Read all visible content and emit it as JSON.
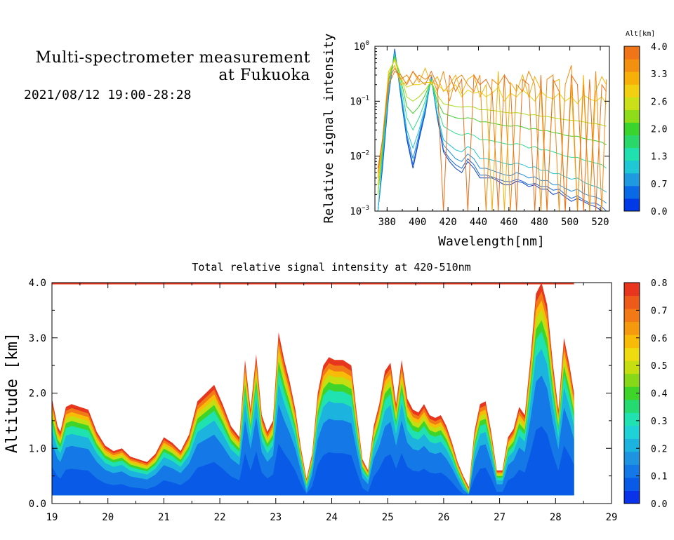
{
  "header": {
    "title_line1": "Multi-spectrometer measurement",
    "title_line2": "at Fukuoka",
    "date_range": "2021/08/12 19:00-28:28"
  },
  "chart_data": [
    {
      "type": "line",
      "title": "",
      "xlabel": "Wavelength[nm]",
      "ylabel": "Relative signal intensity",
      "xlim": [
        372,
        526
      ],
      "ylim": [
        0.001,
        1
      ],
      "yscale": "log",
      "x_ticks": [
        "380",
        "400",
        "420",
        "440",
        "460",
        "480",
        "500",
        "520"
      ],
      "y_ticks": [
        {
          "base": "10",
          "exp": "0"
        },
        {
          "base": "10",
          "exp": "−1"
        },
        {
          "base": "10",
          "exp": "−2"
        },
        {
          "base": "10",
          "exp": "−3"
        }
      ],
      "colorbar": {
        "label": "Alt[km]",
        "range": [
          0,
          4.0
        ],
        "tick_labels": [
          "4.0",
          "3.3",
          "2.6",
          "2.0",
          "1.3",
          "0.7",
          "0.0"
        ],
        "colors": [
          "#0039e6",
          "#0a6ae6",
          "#1f9ae0",
          "#1fc8d4",
          "#20e0b0",
          "#2ad86a",
          "#3bd42e",
          "#8edc1a",
          "#cce01a",
          "#f0d010",
          "#f7b008",
          "#f49010",
          "#f07418"
        ]
      },
      "x": [
        374,
        377,
        381,
        385,
        389,
        393,
        397,
        401,
        405,
        409,
        413,
        417,
        421,
        425,
        429,
        433,
        437,
        441,
        445,
        449,
        453,
        457,
        461,
        465,
        469,
        473,
        477,
        481,
        485,
        489,
        493,
        497,
        501,
        505,
        509,
        513,
        517,
        521,
        524
      ],
      "series": [
        {
          "alt": 0.0,
          "color": "#0a3fd0",
          "values": [
            0.001,
            0.006,
            0.12,
            0.9,
            0.12,
            0.02,
            0.006,
            0.02,
            0.06,
            0.28,
            0.05,
            0.012,
            0.008,
            0.006,
            0.005,
            0.008,
            0.006,
            0.004,
            0.004,
            0.004,
            0.0035,
            0.003,
            0.003,
            0.0035,
            0.0033,
            0.0028,
            0.003,
            0.0025,
            0.0025,
            0.002,
            0.0022,
            0.0018,
            0.0015,
            0.0017,
            0.0015,
            0.0013,
            0.0012,
            0.001,
            0.0009
          ]
        },
        {
          "alt": 0.4,
          "color": "#1466dc",
          "values": [
            0.001,
            0.007,
            0.13,
            0.85,
            0.13,
            0.022,
            0.007,
            0.022,
            0.065,
            0.27,
            0.05,
            0.013,
            0.009,
            0.007,
            0.006,
            0.009,
            0.007,
            0.0045,
            0.0045,
            0.0042,
            0.0038,
            0.0035,
            0.0034,
            0.0038,
            0.0035,
            0.003,
            0.0032,
            0.0028,
            0.0028,
            0.0024,
            0.0025,
            0.002,
            0.0017,
            0.0019,
            0.0016,
            0.0014,
            0.0014,
            0.0012,
            0.001
          ]
        },
        {
          "alt": 0.8,
          "color": "#1f8ee0",
          "values": [
            0.001,
            0.008,
            0.14,
            0.8,
            0.14,
            0.025,
            0.009,
            0.025,
            0.07,
            0.27,
            0.055,
            0.016,
            0.012,
            0.009,
            0.008,
            0.011,
            0.009,
            0.006,
            0.006,
            0.0055,
            0.005,
            0.0046,
            0.0044,
            0.005,
            0.0046,
            0.004,
            0.0042,
            0.0036,
            0.0036,
            0.003,
            0.003,
            0.0026,
            0.0023,
            0.0025,
            0.0021,
            0.0019,
            0.0018,
            0.0016,
            0.0014
          ]
        },
        {
          "alt": 1.2,
          "color": "#22c4d6",
          "values": [
            0.001,
            0.01,
            0.16,
            0.75,
            0.16,
            0.03,
            0.014,
            0.03,
            0.08,
            0.26,
            0.06,
            0.02,
            0.016,
            0.013,
            0.012,
            0.015,
            0.013,
            0.009,
            0.009,
            0.0085,
            0.008,
            0.0074,
            0.007,
            0.0075,
            0.007,
            0.0062,
            0.0064,
            0.0055,
            0.0055,
            0.0048,
            0.0048,
            0.0042,
            0.0038,
            0.004,
            0.0034,
            0.003,
            0.0028,
            0.0025,
            0.0022
          ]
        },
        {
          "alt": 1.6,
          "color": "#2edc8e",
          "values": [
            0.002,
            0.012,
            0.2,
            0.7,
            0.2,
            0.05,
            0.03,
            0.05,
            0.1,
            0.25,
            0.08,
            0.035,
            0.03,
            0.026,
            0.024,
            0.026,
            0.024,
            0.02,
            0.02,
            0.019,
            0.018,
            0.017,
            0.016,
            0.017,
            0.016,
            0.014,
            0.015,
            0.013,
            0.013,
            0.012,
            0.011,
            0.01,
            0.0095,
            0.0095,
            0.0085,
            0.008,
            0.0075,
            0.007,
            0.006
          ]
        },
        {
          "alt": 2.0,
          "color": "#3cd02c",
          "values": [
            0.002,
            0.015,
            0.25,
            0.65,
            0.25,
            0.08,
            0.06,
            0.08,
            0.13,
            0.24,
            0.1,
            0.06,
            0.055,
            0.05,
            0.048,
            0.05,
            0.048,
            0.042,
            0.042,
            0.04,
            0.038,
            0.036,
            0.035,
            0.036,
            0.034,
            0.031,
            0.032,
            0.029,
            0.029,
            0.027,
            0.026,
            0.024,
            0.023,
            0.023,
            0.021,
            0.02,
            0.019,
            0.018,
            0.016
          ]
        },
        {
          "alt": 2.4,
          "color": "#a6dc18",
          "values": [
            0.002,
            0.018,
            0.3,
            0.6,
            0.3,
            0.12,
            0.1,
            0.12,
            0.16,
            0.23,
            0.13,
            0.09,
            0.085,
            0.08,
            0.078,
            0.08,
            0.078,
            0.07,
            0.07,
            0.068,
            0.066,
            0.063,
            0.061,
            0.062,
            0.06,
            0.056,
            0.057,
            0.053,
            0.053,
            0.05,
            0.048,
            0.046,
            0.045,
            0.044,
            0.042,
            0.04,
            0.039,
            0.037,
            0.035
          ]
        },
        {
          "alt": 2.8,
          "color": "#e8d010",
          "values": [
            0.003,
            0.02,
            0.35,
            0.55,
            0.25,
            0.18,
            0.2,
            0.2,
            0.22,
            0.22,
            0.2,
            0.16,
            0.15,
            0.2,
            0.12,
            0.16,
            0.14,
            0.15,
            0.12,
            0.14,
            0.18,
            0.1,
            0.14,
            0.12,
            0.16,
            0.13,
            0.1,
            0.15,
            0.12,
            0.11,
            0.14,
            0.1,
            0.12,
            0.09,
            0.13,
            0.11,
            0.1,
            0.12,
            0.09
          ]
        },
        {
          "alt": 3.2,
          "color": "#f6ae0a",
          "values": [
            0.004,
            0.02,
            0.3,
            0.45,
            0.2,
            0.22,
            0.35,
            0.22,
            0.4,
            0.2,
            0.28,
            0.15,
            0.2,
            0.3,
            0.14,
            0.25,
            0.3,
            0.12,
            0.2,
            0.001,
            0.35,
            0.001,
            0.22,
            0.15,
            0.3,
            0.12,
            0.28,
            0.16,
            0.001,
            0.22,
            0.25,
            0.001,
            0.2,
            0.001,
            0.3,
            0.001,
            0.15,
            0.28,
            0.2
          ]
        },
        {
          "alt": 3.6,
          "color": "#f28a12",
          "values": [
            0.005,
            0.02,
            0.25,
            0.4,
            0.25,
            0.3,
            0.2,
            0.3,
            0.25,
            0.3,
            0.15,
            0.35,
            0.1,
            0.25,
            0.3,
            0.2,
            0.15,
            0.3,
            0.001,
            0.25,
            0.2,
            0.3,
            0.001,
            0.2,
            0.15,
            0.35,
            0.2,
            0.001,
            0.25,
            0.3,
            0.001,
            0.2,
            0.45,
            0.001,
            0.2,
            0.001,
            0.35,
            0.001,
            0.25
          ]
        },
        {
          "alt": 4.0,
          "color": "#ee6e1a",
          "values": [
            0.006,
            0.02,
            0.2,
            0.35,
            0.3,
            0.2,
            0.35,
            0.25,
            0.2,
            0.35,
            0.2,
            0.001,
            0.3,
            0.15,
            0.25,
            0.001,
            0.3,
            0.2,
            0.25,
            0.15,
            0.001,
            0.3,
            0.2,
            0.001,
            0.25,
            0.2,
            0.001,
            0.3,
            0.001,
            0.25,
            0.15,
            0.001,
            0.3,
            0.2,
            0.001,
            0.25,
            0.001,
            0.2,
            0.15
          ]
        }
      ]
    },
    {
      "type": "heatmap",
      "title": "Total relative signal intensity at 420-510nm",
      "xlabel": "",
      "ylabel": "Altitude [km]",
      "xlim": [
        19,
        29
      ],
      "ylim": [
        0,
        4.0
      ],
      "x_ticks": [
        "19",
        "20",
        "21",
        "22",
        "23",
        "24",
        "25",
        "26",
        "27",
        "28",
        "29"
      ],
      "y_ticks": [
        "0.0",
        "1.0",
        "2.0",
        "3.0",
        "4.0"
      ],
      "data_end_time": 28.33,
      "data_bottom_alt": 0.15,
      "cloud_top_profile": {
        "time": [
          19.0,
          19.1,
          19.15,
          19.25,
          19.35,
          19.5,
          19.65,
          19.8,
          19.95,
          20.1,
          20.25,
          20.4,
          20.55,
          20.7,
          20.85,
          21.0,
          21.15,
          21.3,
          21.45,
          21.6,
          21.75,
          21.9,
          22.05,
          22.2,
          22.35,
          22.45,
          22.55,
          22.65,
          22.75,
          22.85,
          22.95,
          23.05,
          23.15,
          23.25,
          23.35,
          23.45,
          23.55,
          23.65,
          23.75,
          23.85,
          23.95,
          24.05,
          24.2,
          24.35,
          24.45,
          24.55,
          24.65,
          24.75,
          24.85,
          24.95,
          25.05,
          25.15,
          25.25,
          25.35,
          25.45,
          25.55,
          25.65,
          25.75,
          25.85,
          25.95,
          26.05,
          26.15,
          26.25,
          26.35,
          26.45,
          26.55,
          26.65,
          26.75,
          26.85,
          26.95,
          27.05,
          27.15,
          27.25,
          27.35,
          27.45,
          27.55,
          27.65,
          27.75,
          27.85,
          27.95,
          28.05,
          28.15,
          28.25,
          28.33
        ],
        "top_km": [
          1.9,
          1.4,
          1.3,
          1.75,
          1.8,
          1.75,
          1.7,
          1.3,
          1.05,
          0.95,
          1.0,
          0.85,
          0.8,
          0.75,
          0.9,
          1.2,
          1.1,
          0.95,
          1.25,
          1.85,
          2.0,
          2.15,
          1.8,
          1.4,
          1.2,
          2.6,
          1.7,
          2.7,
          1.6,
          1.3,
          1.5,
          3.1,
          2.6,
          2.2,
          1.7,
          1.0,
          0.45,
          0.9,
          2.0,
          2.5,
          2.65,
          2.6,
          2.6,
          2.5,
          1.6,
          0.8,
          0.6,
          1.4,
          1.8,
          2.4,
          2.55,
          1.8,
          2.6,
          1.9,
          1.7,
          1.65,
          1.8,
          1.6,
          1.55,
          1.6,
          1.4,
          1.1,
          0.75,
          0.5,
          0.3,
          1.3,
          1.8,
          1.85,
          1.3,
          0.6,
          0.6,
          1.2,
          1.35,
          1.75,
          1.6,
          2.6,
          3.8,
          4.0,
          3.6,
          2.55,
          1.7,
          3.0,
          2.5,
          2.0
        ]
      },
      "colorbar": {
        "range": [
          0,
          0.8
        ],
        "tick_labels": [
          "0.8",
          "0.7",
          "0.6",
          "0.5",
          "0.4",
          "0.3",
          "0.2",
          "0.1",
          "0.0"
        ],
        "colors": [
          "#0a32e8",
          "#0a5ae8",
          "#1478e6",
          "#1e94e0",
          "#1cb4de",
          "#1ed2d6",
          "#20e2b0",
          "#26da72",
          "#3ed42a",
          "#86d818",
          "#c4de12",
          "#eedc10",
          "#f8bc08",
          "#f59a0e",
          "#f27a16",
          "#ee5a1a",
          "#e8361e"
        ]
      }
    }
  ]
}
